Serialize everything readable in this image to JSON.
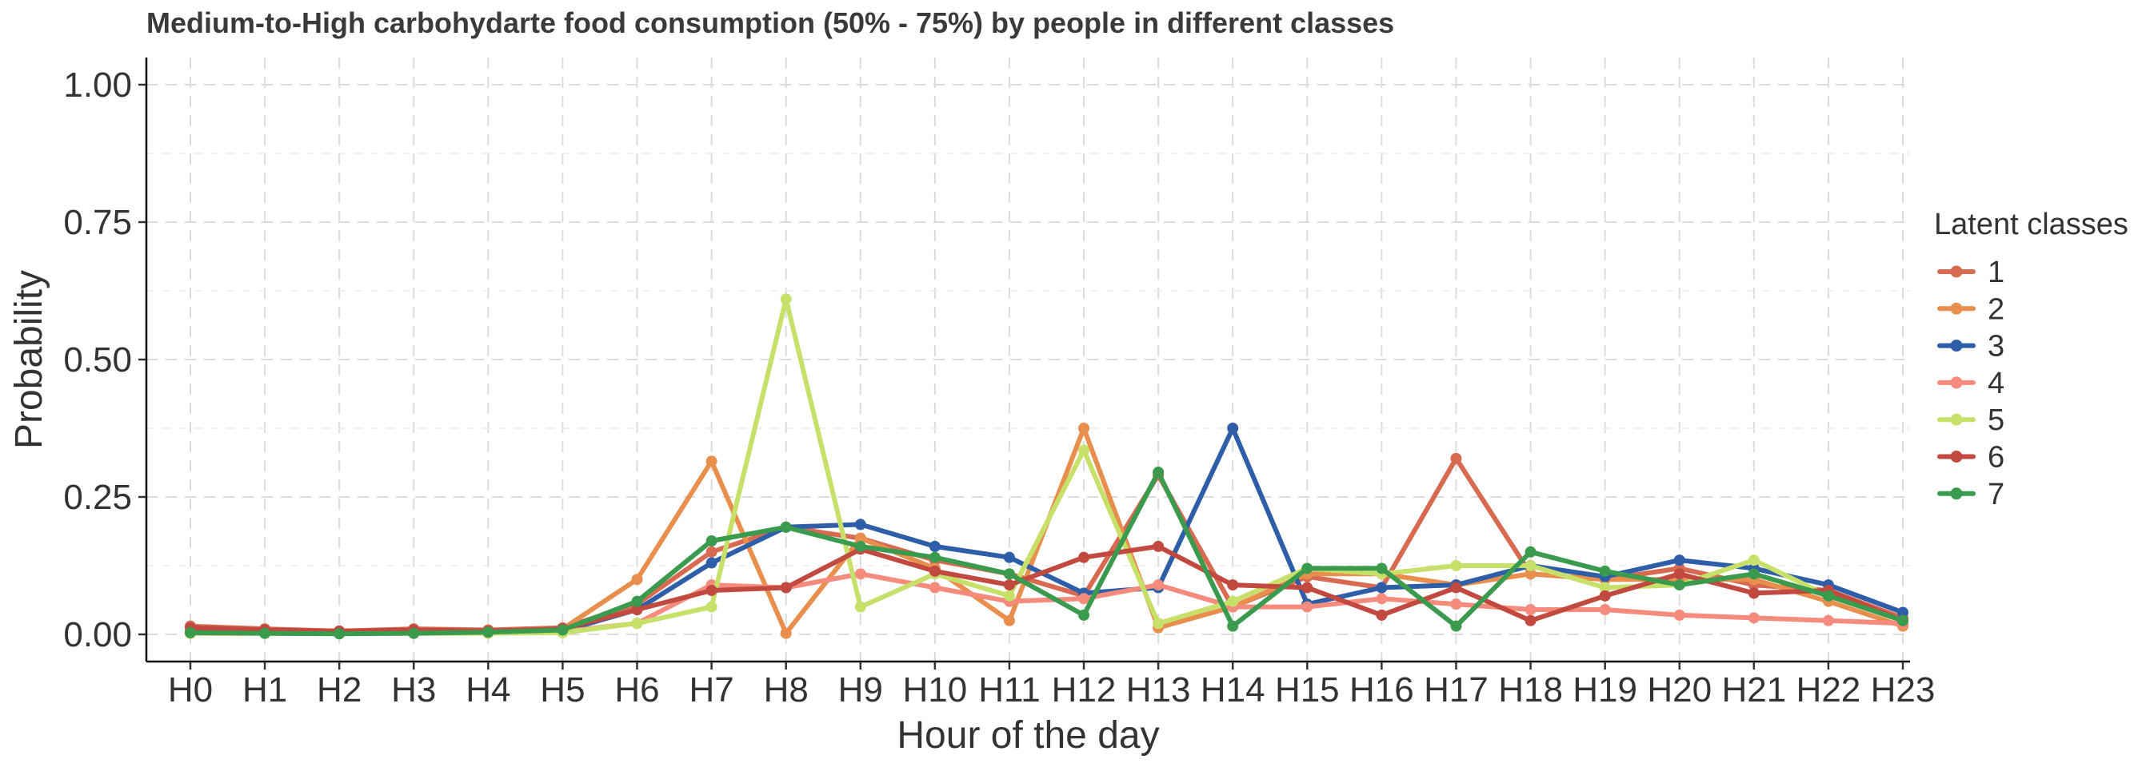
{
  "chart_data": {
    "type": "line",
    "title": "Medium-to-High carbohydarte food consumption (50% - 75%) by people in different classes",
    "xlabel": "Hour of the day",
    "ylabel": "Probability",
    "ylim": [
      0,
      1
    ],
    "yticks": [
      "0.00",
      "0.25",
      "0.50",
      "0.75",
      "1.00"
    ],
    "grid": true,
    "legend": {
      "title": "Latent classes",
      "placement": "right"
    },
    "categories": [
      "H0",
      "H1",
      "H2",
      "H3",
      "H4",
      "H5",
      "H6",
      "H7",
      "H8",
      "H9",
      "H10",
      "H11",
      "H12",
      "H13",
      "H14",
      "H15",
      "H16",
      "H17",
      "H18",
      "H19",
      "H20",
      "H21",
      "H22",
      "H23"
    ],
    "series": [
      {
        "name": "1",
        "color": "#d86a52",
        "values": [
          0.015,
          0.01,
          0.006,
          0.01,
          0.008,
          0.012,
          0.055,
          0.15,
          0.195,
          0.175,
          0.135,
          0.11,
          0.07,
          0.29,
          0.05,
          0.105,
          0.085,
          0.32,
          0.11,
          0.1,
          0.12,
          0.09,
          0.08,
          0.03
        ]
      },
      {
        "name": "2",
        "color": "#e88f4e",
        "values": [
          0.002,
          0.002,
          0.002,
          0.003,
          0.003,
          0.01,
          0.1,
          0.315,
          0.002,
          0.175,
          0.12,
          0.025,
          0.375,
          0.012,
          0.05,
          0.11,
          0.11,
          0.09,
          0.11,
          0.1,
          0.1,
          0.1,
          0.06,
          0.015
        ]
      },
      {
        "name": "3",
        "color": "#2f5ea8",
        "values": [
          0.005,
          0.003,
          0.002,
          0.003,
          0.004,
          0.006,
          0.045,
          0.13,
          0.195,
          0.2,
          0.16,
          0.14,
          0.075,
          0.085,
          0.375,
          0.055,
          0.085,
          0.09,
          0.125,
          0.105,
          0.135,
          0.12,
          0.09,
          0.04
        ]
      },
      {
        "name": "4",
        "color": "#f58b7c",
        "values": [
          0.002,
          0.002,
          0.002,
          0.002,
          0.003,
          0.005,
          0.02,
          0.09,
          0.085,
          0.11,
          0.085,
          0.06,
          0.065,
          0.09,
          0.05,
          0.05,
          0.065,
          0.055,
          0.045,
          0.045,
          0.035,
          0.03,
          0.025,
          0.02
        ]
      },
      {
        "name": "5",
        "color": "#c7e06a",
        "values": [
          0.002,
          0.002,
          0.002,
          0.002,
          0.002,
          0.003,
          0.02,
          0.05,
          0.61,
          0.05,
          0.11,
          0.07,
          0.335,
          0.02,
          0.06,
          0.12,
          0.11,
          0.125,
          0.125,
          0.085,
          0.09,
          0.135,
          0.07,
          0.025
        ]
      },
      {
        "name": "6",
        "color": "#c1493f",
        "values": [
          0.012,
          0.008,
          0.006,
          0.008,
          0.006,
          0.01,
          0.045,
          0.08,
          0.085,
          0.155,
          0.115,
          0.09,
          0.14,
          0.16,
          0.09,
          0.085,
          0.035,
          0.085,
          0.025,
          0.07,
          0.11,
          0.075,
          0.08,
          0.025
        ]
      },
      {
        "name": "7",
        "color": "#3a9a4d",
        "values": [
          0.003,
          0.002,
          0.001,
          0.002,
          0.004,
          0.008,
          0.06,
          0.17,
          0.195,
          0.16,
          0.14,
          0.11,
          0.035,
          0.295,
          0.015,
          0.12,
          0.12,
          0.015,
          0.15,
          0.115,
          0.09,
          0.11,
          0.07,
          0.025
        ]
      }
    ]
  }
}
